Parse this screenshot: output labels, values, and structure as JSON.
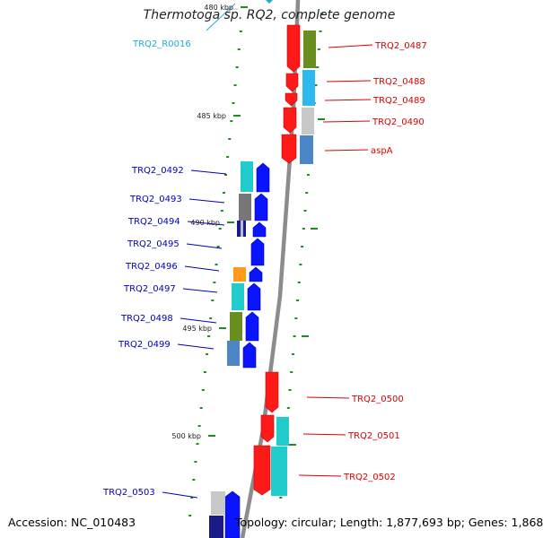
{
  "title": "Thermotoga sp. RQ2, complete genome",
  "footer": {
    "accession": "Accession: NC_010483",
    "summary": "Topology: circular; Length: 1,877,693 bp; Genes: 1,868"
  },
  "colors": {
    "backbone": "#8c8c8c",
    "tick": "#1e8c1e",
    "forward_label": "#dd0000",
    "reverse_label": "#0000bb",
    "rna_label": "#22aadd"
  },
  "scale_labels": [
    "480 kbp",
    "485 kbp",
    "490 kbp",
    "495 kbp",
    "500 kbp"
  ],
  "forward_genes": [
    "TRQ2_0487",
    "TRQ2_0488",
    "TRQ2_0489",
    "TRQ2_0490",
    "aspA",
    "TRQ2_0500",
    "TRQ2_0501",
    "TRQ2_0502"
  ],
  "reverse_genes": [
    "TRQ2_0492",
    "TRQ2_0493",
    "TRQ2_0494",
    "TRQ2_0495",
    "TRQ2_0496",
    "TRQ2_0497",
    "TRQ2_0498",
    "TRQ2_0499",
    "TRQ2_0503"
  ],
  "rna_genes": [
    "TRQ2_R0016"
  ]
}
